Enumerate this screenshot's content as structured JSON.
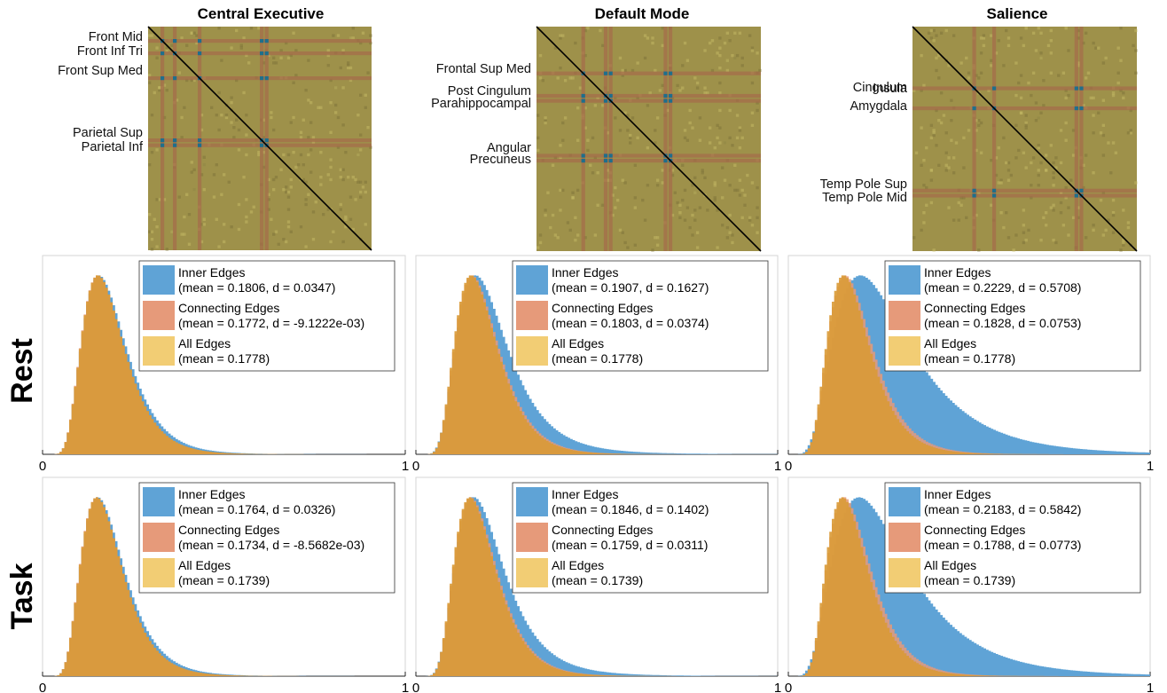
{
  "row_labels": [
    "Rest",
    "Task"
  ],
  "networks": [
    {
      "title": "Central Executive",
      "regions": [
        "Front Mid",
        "Front Inf Tri",
        "Front Sup Med",
        "Parietal Sup",
        "Parietal Inf"
      ]
    },
    {
      "title": "Default Mode",
      "regions": [
        "Frontal Sup Med",
        "Post Cingulum",
        "Parahippocampal",
        "Angular",
        "Precuneus"
      ]
    },
    {
      "title": "Salience",
      "regions": [
        "Insula",
        "Cingulum",
        "Amygdala",
        "Temp Pole Sup",
        "Temp Pole Mid"
      ]
    }
  ],
  "legend_labels": {
    "inner": "Inner Edges",
    "connecting": "Connecting Edges",
    "all": "All Edges"
  },
  "colors": {
    "inner": "#5fa3d6",
    "connecting": "#e69a7a",
    "all": "#f2cd74",
    "overlap": "#d99a36",
    "matrix_bg": "#9e914a",
    "matrix_band": "#a56b4a",
    "matrix_hot": "#1f6f8b",
    "diagonal": "#000000"
  },
  "chart_data": [
    {
      "type": "histogram",
      "condition": "Rest",
      "network": "Central Executive",
      "xlim": [
        0,
        1
      ],
      "xticks": [
        "0",
        "1"
      ],
      "series": [
        {
          "name": "Inner Edges",
          "stats": "(mean = 0.1806, d = 0.0347)",
          "mean": 0.1806,
          "d": 0.0347
        },
        {
          "name": "Connecting Edges",
          "stats": "(mean = 0.1772, d = -9.1222e-03)",
          "mean": 0.1772,
          "d": -0.0091222
        },
        {
          "name": "All Edges",
          "stats": "(mean = 0.1778)",
          "mean": 0.1778
        }
      ]
    },
    {
      "type": "histogram",
      "condition": "Rest",
      "network": "Default Mode",
      "xlim": [
        0,
        1
      ],
      "xticks": [
        "0",
        "1"
      ],
      "series": [
        {
          "name": "Inner Edges",
          "stats": "(mean = 0.1907, d = 0.1627)",
          "mean": 0.1907,
          "d": 0.1627
        },
        {
          "name": "Connecting Edges",
          "stats": "(mean = 0.1803, d = 0.0374)",
          "mean": 0.1803,
          "d": 0.0374
        },
        {
          "name": "All Edges",
          "stats": "(mean = 0.1778)",
          "mean": 0.1778
        }
      ]
    },
    {
      "type": "histogram",
      "condition": "Rest",
      "network": "Salience",
      "xlim": [
        0,
        1
      ],
      "xticks": [
        "0",
        "1"
      ],
      "series": [
        {
          "name": "Inner Edges",
          "stats": "(mean = 0.2229, d = 0.5708)",
          "mean": 0.2229,
          "d": 0.5708
        },
        {
          "name": "Connecting Edges",
          "stats": "(mean = 0.1828, d = 0.0753)",
          "mean": 0.1828,
          "d": 0.0753
        },
        {
          "name": "All Edges",
          "stats": "(mean = 0.1778)",
          "mean": 0.1778
        }
      ]
    },
    {
      "type": "histogram",
      "condition": "Task",
      "network": "Central Executive",
      "xlim": [
        0,
        1
      ],
      "xticks": [
        "0",
        "1"
      ],
      "series": [
        {
          "name": "Inner Edges",
          "stats": "(mean = 0.1764, d = 0.0326)",
          "mean": 0.1764,
          "d": 0.0326
        },
        {
          "name": "Connecting Edges",
          "stats": "(mean = 0.1734, d = -8.5682e-03)",
          "mean": 0.1734,
          "d": -0.0085682
        },
        {
          "name": "All Edges",
          "stats": "(mean = 0.1739)",
          "mean": 0.1739
        }
      ]
    },
    {
      "type": "histogram",
      "condition": "Task",
      "network": "Default Mode",
      "xlim": [
        0,
        1
      ],
      "xticks": [
        "0",
        "1"
      ],
      "series": [
        {
          "name": "Inner Edges",
          "stats": "(mean = 0.1846, d = 0.1402)",
          "mean": 0.1846,
          "d": 0.1402
        },
        {
          "name": "Connecting Edges",
          "stats": "(mean = 0.1759, d = 0.0311)",
          "mean": 0.1759,
          "d": 0.0311
        },
        {
          "name": "All Edges",
          "stats": "(mean = 0.1739)",
          "mean": 0.1739
        }
      ]
    },
    {
      "type": "histogram",
      "condition": "Task",
      "network": "Salience",
      "xlim": [
        0,
        1
      ],
      "xticks": [
        "0",
        "1"
      ],
      "series": [
        {
          "name": "Inner Edges",
          "stats": "(mean = 0.2183, d = 0.5842)",
          "mean": 0.2183,
          "d": 0.5842
        },
        {
          "name": "Connecting Edges",
          "stats": "(mean = 0.1788, d = 0.0773)",
          "mean": 0.1788,
          "d": 0.0773
        },
        {
          "name": "All Edges",
          "stats": "(mean = 0.1739)",
          "mean": 0.1739
        }
      ]
    }
  ]
}
